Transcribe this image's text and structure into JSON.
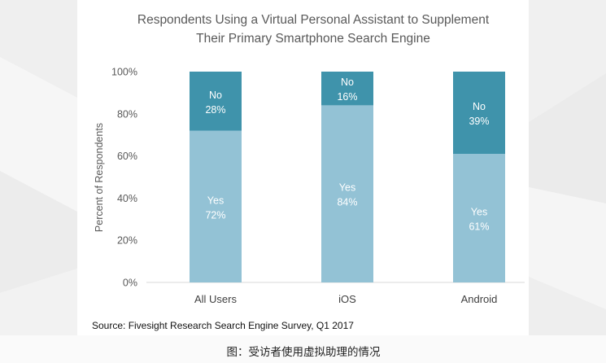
{
  "caption": "图：受访者使用虚拟助理的情况",
  "chart_data": {
    "type": "bar",
    "stacked": true,
    "title": [
      "Respondents Using a Virtual Personal Assistant to Supplement",
      "Their Primary Smartphone Search Engine"
    ],
    "xlabel": "",
    "ylabel": "Percent of Respondents",
    "ylim": [
      0,
      100
    ],
    "yticks": [
      0,
      20,
      40,
      60,
      80,
      100
    ],
    "ytick_labels": [
      "0%",
      "20%",
      "40%",
      "60%",
      "80%",
      "100%"
    ],
    "categories": [
      "All Users",
      "iOS",
      "Android"
    ],
    "series": [
      {
        "name": "Yes",
        "values": [
          72,
          84,
          61
        ],
        "labels": [
          "72%",
          "84%",
          "61%"
        ],
        "color": "#93c2d5"
      },
      {
        "name": "No",
        "values": [
          28,
          16,
          39
        ],
        "labels": [
          "28%",
          "16%",
          "39%"
        ],
        "color": "#3f93ab"
      }
    ],
    "grid": false,
    "legend": "none",
    "source": "Source: Fivesight Research Search Engine Survey, Q1 2017"
  }
}
